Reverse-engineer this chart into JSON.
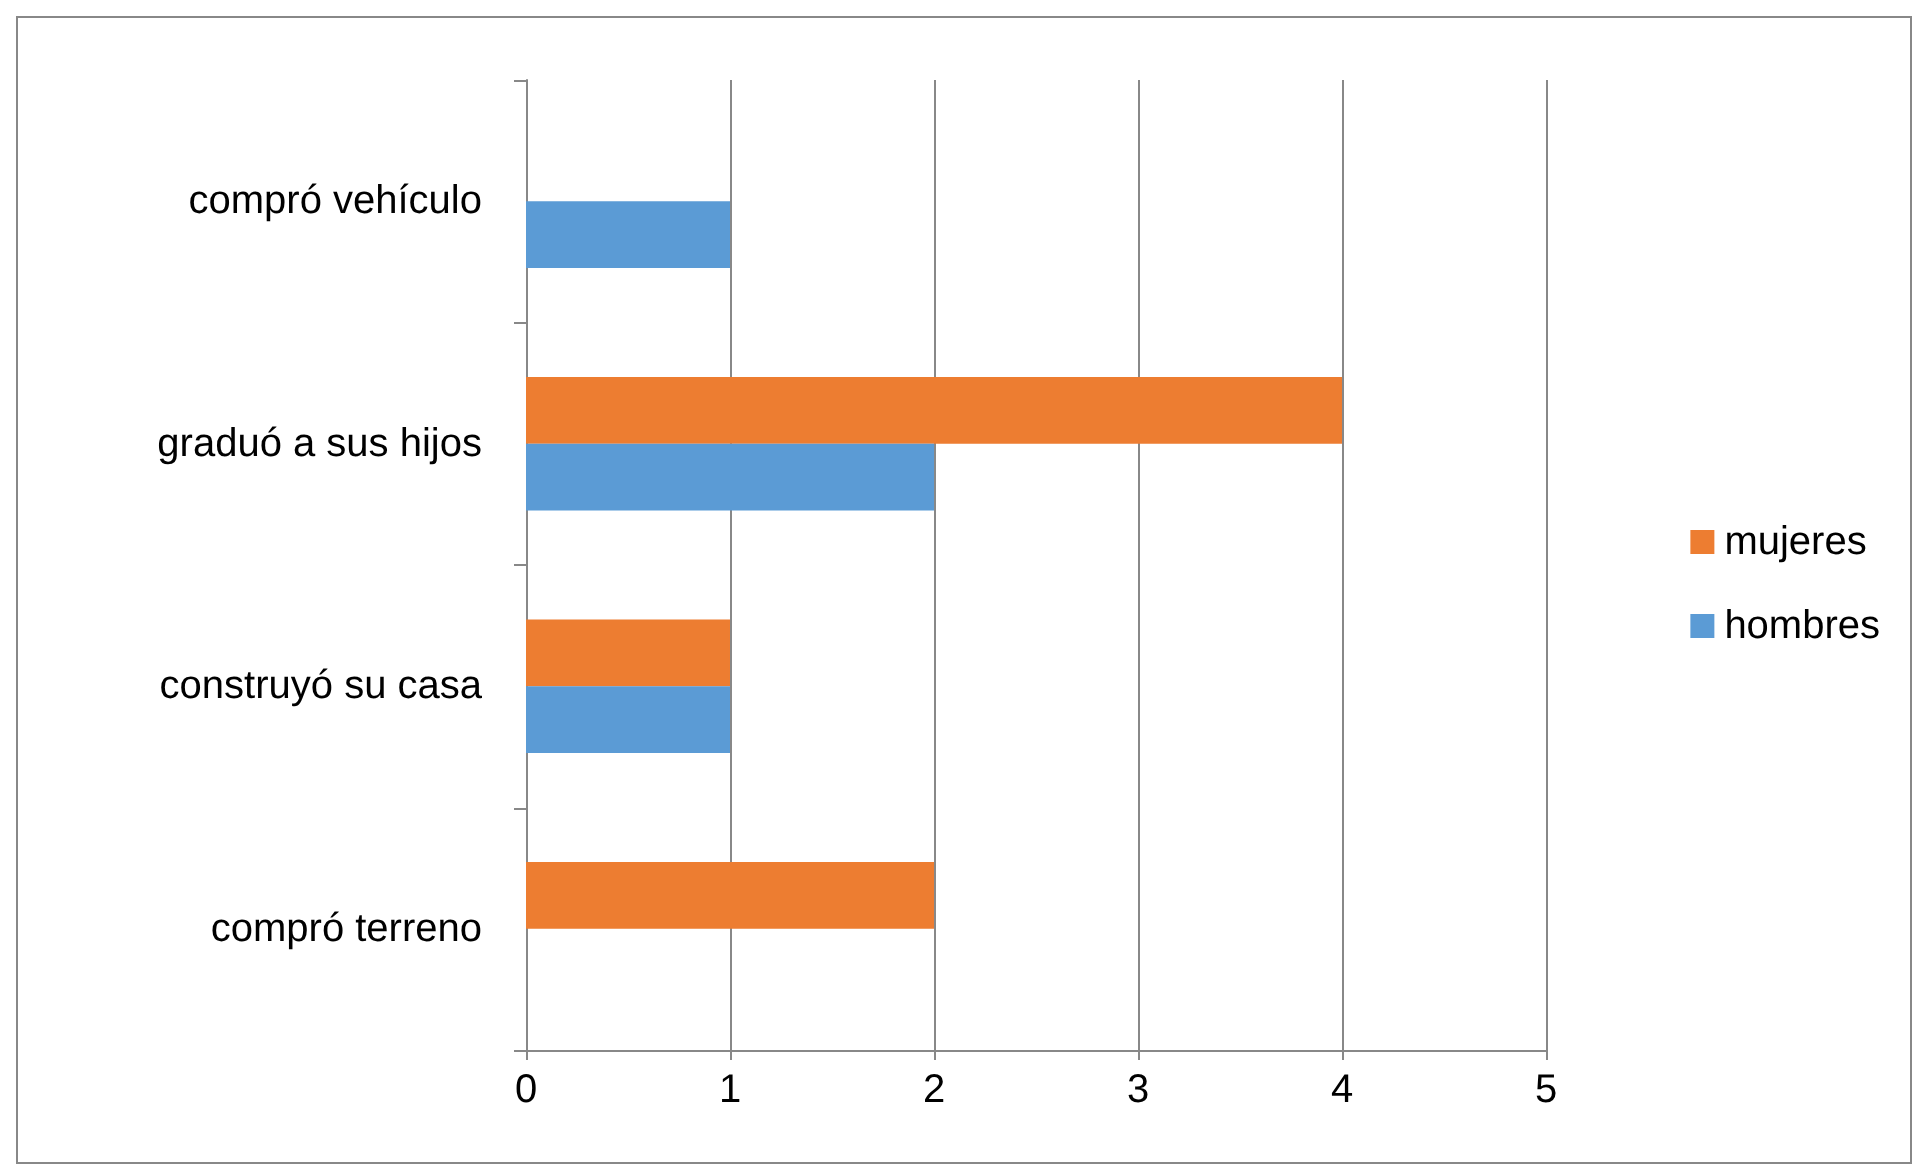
{
  "chart_data": {
    "type": "bar",
    "orientation": "horizontal",
    "categories": [
      "compró vehículo",
      "graduó a sus hijos",
      "construyó su casa",
      "compró terreno"
    ],
    "series": [
      {
        "name": "mujeres",
        "color": "#ed7d31",
        "values": [
          0,
          4,
          1,
          2
        ]
      },
      {
        "name": "hombres",
        "color": "#5b9bd5",
        "values": [
          1,
          2,
          1,
          0
        ]
      }
    ],
    "xlim": [
      0,
      5
    ],
    "xticks": [
      0,
      1,
      2,
      3,
      4,
      5
    ],
    "grid": "x",
    "legend": "right"
  }
}
